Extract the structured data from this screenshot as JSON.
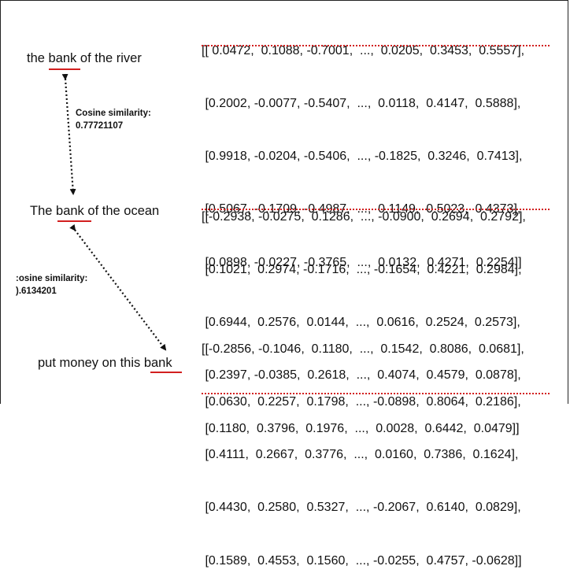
{
  "sentences": {
    "river": {
      "before": "the ",
      "bank": "bank",
      "after": " of the river"
    },
    "ocean": {
      "before": "The ",
      "bank": "bank",
      "after": " of the ocean"
    },
    "money": {
      "before": "put money on this ",
      "bank": "bank",
      "after": ""
    }
  },
  "similarities": {
    "river_ocean": {
      "label": "Cosine similarity:",
      "value": "0.77721107"
    },
    "ocean_money": {
      "label": ":osine similarity:",
      "value": ").6134201"
    }
  },
  "matrices": {
    "river": [
      "[[ 0.0472,  0.1088, -0.7001,  ...,  0.0205,  0.3453,  0.5557],",
      " [0.2002, -0.0077, -0.5407,  ...,  0.0118,  0.4147,  0.5888],",
      " [0.9918, -0.0204, -0.5406,  ..., -0.1825,  0.3246,  0.7413],",
      " [0.5067, -0.1709, -0.4987,  ...,  0.1149,  0.5023,  0.4373],",
      " [0.0898, -0.0227, -0.3765,  ...,  0.0132,  0.4271,  0.2254]]"
    ],
    "ocean": [
      "[[-0.2938, -0.0275,  0.1286,  ..., -0.0900,  0.2694,  0.2792],",
      " [0.1021,  0.2974, -0.1716,  ..., -0.1654,  0.4221,  0.2984],",
      " [0.6944,  0.2576,  0.0144,  ...,  0.0616,  0.2524,  0.2573],",
      " [0.2397, -0.0385,  0.2618,  ...,  0.4074,  0.4579,  0.0878],",
      " [0.1180,  0.3796,  0.1976,  ...,  0.0028,  0.6442,  0.0479]]"
    ],
    "money": [
      "[[-0.2856, -0.1046,  0.1180,  ...,  0.1542,  0.8086,  0.0681],",
      " [0.0630,  0.2257,  0.1798,  ..., -0.0898,  0.8064,  0.2186],",
      " [0.4111,  0.2667,  0.3776,  ...,  0.0160,  0.7386,  0.1624],",
      " [0.4430,  0.2580,  0.5327,  ..., -0.2067,  0.6140,  0.0829],",
      " [0.1589,  0.4553,  0.1560,  ..., -0.0255,  0.4757, -0.0628]]"
    ]
  },
  "colors": {
    "highlight": "#d21f1f",
    "arrow": "#111111"
  }
}
